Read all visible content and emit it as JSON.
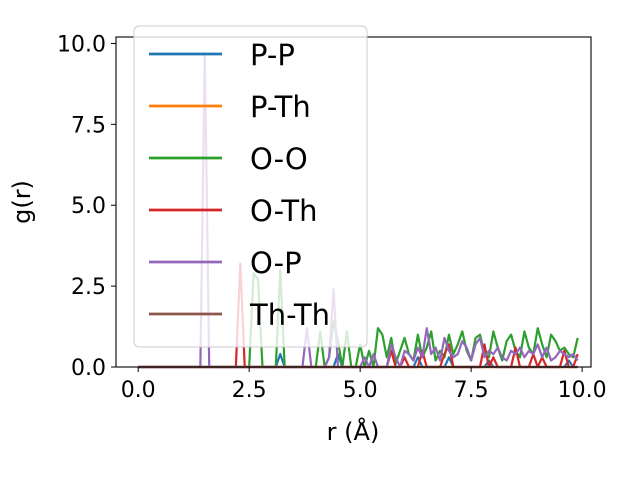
{
  "chart_data": {
    "type": "line",
    "xlabel": "r (Å)",
    "ylabel": "g(r)",
    "xlim": [
      -0.5,
      10.2
    ],
    "ylim": [
      0,
      10.2
    ],
    "xticks": [
      "0.0",
      "2.5",
      "5.0",
      "7.5",
      "10.0"
    ],
    "yticks": [
      "0.0",
      "2.5",
      "5.0",
      "7.5",
      "10.0"
    ],
    "legend_position": "upper-left",
    "grid": false,
    "x": [
      0.0,
      0.1,
      0.2,
      0.3,
      0.4,
      0.5,
      0.6,
      0.7,
      0.8,
      0.9,
      1.0,
      1.1,
      1.2,
      1.3,
      1.4,
      1.5,
      1.6,
      1.7,
      1.8,
      1.9,
      2.0,
      2.1,
      2.2,
      2.3,
      2.4,
      2.5,
      2.6,
      2.7,
      2.8,
      2.9,
      3.0,
      3.1,
      3.2,
      3.3,
      3.4,
      3.5,
      3.6,
      3.7,
      3.8,
      3.9,
      4.0,
      4.1,
      4.2,
      4.3,
      4.4,
      4.5,
      4.6,
      4.7,
      4.8,
      4.9,
      5.0,
      5.1,
      5.2,
      5.3,
      5.4,
      5.5,
      5.6,
      5.7,
      5.8,
      5.9,
      6.0,
      6.1,
      6.2,
      6.3,
      6.4,
      6.5,
      6.6,
      6.7,
      6.8,
      6.9,
      7.0,
      7.1,
      7.2,
      7.3,
      7.4,
      7.5,
      7.6,
      7.7,
      7.8,
      7.9,
      8.0,
      8.1,
      8.2,
      8.3,
      8.4,
      8.5,
      8.6,
      8.7,
      8.8,
      8.9,
      9.0,
      9.1,
      9.2,
      9.3,
      9.4,
      9.5,
      9.6,
      9.7,
      9.8,
      9.9
    ],
    "series": [
      {
        "name": "P-P",
        "color": "#1f77b4",
        "values": [
          0,
          0,
          0,
          0,
          0,
          0,
          0,
          0,
          0,
          0,
          0,
          0,
          0,
          0,
          0,
          0,
          0,
          0,
          0,
          0,
          0,
          0,
          0,
          0,
          0,
          0,
          0,
          0,
          0,
          0,
          0,
          0,
          0.4,
          0,
          0,
          0,
          0,
          0,
          0,
          0,
          0,
          0,
          0,
          0,
          0,
          0.4,
          0,
          0,
          0,
          0,
          0,
          0,
          0,
          0,
          0,
          0,
          0,
          0,
          0,
          0,
          0,
          0,
          0,
          0.3,
          0,
          0,
          0,
          0,
          0,
          0,
          0.3,
          0,
          0,
          0,
          0,
          0,
          0,
          0,
          0,
          0.2,
          0,
          0,
          0,
          0,
          0,
          0,
          0,
          0,
          0,
          0,
          0,
          0,
          0,
          0,
          0,
          0,
          0,
          0.2,
          0,
          0
        ]
      },
      {
        "name": "P-Th",
        "color": "#ff7f0e",
        "values": [
          0,
          0,
          0,
          0,
          0,
          0,
          0,
          0,
          0,
          0,
          0,
          0,
          0,
          0,
          0,
          0,
          0,
          0,
          0,
          0,
          0,
          0,
          0,
          0,
          0,
          0,
          0,
          0,
          0,
          0,
          0,
          0,
          0,
          0,
          0,
          0,
          0,
          0,
          0,
          0,
          0,
          0,
          0,
          0,
          0,
          0,
          0,
          0,
          0,
          0,
          0,
          0,
          0,
          0,
          0,
          0,
          0,
          0,
          0,
          0,
          0,
          0,
          0,
          0,
          0,
          0,
          0,
          0,
          0,
          0,
          0,
          0,
          0,
          0,
          0,
          0,
          0,
          0,
          0,
          0,
          0,
          0,
          0,
          0,
          0,
          0,
          0,
          0,
          0,
          0,
          0,
          0,
          0,
          0,
          0,
          0,
          0,
          0,
          0,
          0
        ]
      },
      {
        "name": "O-O",
        "color": "#2ca02c",
        "values": [
          0,
          0,
          0,
          0,
          0,
          0,
          0,
          0,
          0,
          0,
          0,
          0,
          0,
          0,
          0,
          0,
          0,
          0,
          0,
          0,
          0,
          0,
          0,
          0,
          0,
          0,
          2.9,
          2.7,
          0,
          0,
          0,
          0,
          3.0,
          0,
          0,
          0,
          0,
          0,
          0,
          0,
          0,
          1.1,
          0,
          0.3,
          1.4,
          0.8,
          0,
          1.1,
          0,
          0,
          0.7,
          0,
          0.5,
          0,
          1.2,
          1.0,
          0.3,
          0.9,
          0.1,
          0.5,
          0.9,
          0.4,
          0.2,
          1.0,
          0.3,
          0.6,
          1.1,
          0.2,
          0.5,
          0.3,
          1.0,
          0.4,
          0.7,
          1.1,
          0.5,
          0.2,
          0.9,
          1.0,
          0.4,
          0.3,
          1.1,
          0.6,
          0.2,
          0.8,
          1.0,
          0.5,
          0.3,
          1.1,
          0.6,
          0.4,
          1.2,
          0.7,
          0.3,
          1.0,
          0.8,
          0.5,
          0.6,
          0.4,
          0.3,
          0.9
        ]
      },
      {
        "name": "O-Th",
        "color": "#d62728",
        "values": [
          0,
          0,
          0,
          0,
          0,
          0,
          0,
          0,
          0,
          0,
          0,
          0,
          0,
          0,
          0,
          0,
          0,
          0,
          0,
          0,
          0,
          0,
          0,
          3.2,
          0,
          0,
          0,
          0,
          0,
          0,
          0,
          0,
          0,
          0,
          0,
          0,
          0,
          0,
          0,
          0,
          0,
          0,
          0,
          0,
          0,
          0,
          0,
          0,
          0,
          0,
          0,
          0,
          0,
          0,
          0,
          0,
          0,
          0.5,
          0,
          0,
          0.3,
          0,
          0,
          0,
          0.5,
          0,
          0,
          0,
          0,
          0.4,
          0.7,
          0,
          0,
          0,
          0,
          0,
          0,
          0,
          0.7,
          0,
          0.3,
          0,
          0,
          0,
          0,
          0.6,
          0,
          0,
          0,
          0.4,
          0,
          0.3,
          0,
          0,
          0,
          0,
          0.5,
          0,
          0,
          0.4
        ]
      },
      {
        "name": "O-P",
        "color": "#9467bd",
        "values": [
          0,
          0,
          0,
          0,
          0,
          0,
          0,
          0,
          0,
          0,
          0,
          0,
          0,
          0,
          0,
          9.7,
          0,
          0,
          0,
          0,
          0,
          0,
          0,
          0,
          0,
          0,
          0,
          0,
          0,
          0,
          0,
          0,
          0,
          0,
          0,
          0,
          0,
          0,
          1.2,
          0,
          0,
          0,
          0,
          0.3,
          2.4,
          0,
          0,
          0,
          0,
          0,
          0,
          0.3,
          0,
          0.4,
          0,
          0,
          0,
          0.7,
          0.3,
          0,
          0.5,
          0.4,
          0.2,
          0.6,
          0.3,
          1.2,
          0.4,
          0.6,
          0.2,
          0.9,
          0.5,
          0.3,
          0.4,
          0.8,
          0.6,
          0.2,
          0.7,
          0.9,
          0.3,
          0.5,
          0.4,
          0.6,
          0.3,
          0.2,
          0.5,
          0.4,
          0.6,
          0.3,
          0.5,
          0.4,
          0.7,
          0.3,
          0.6,
          0.2,
          0.3,
          0.5,
          0.4,
          0.3,
          0.4,
          0.2
        ]
      },
      {
        "name": "Th-Th",
        "color": "#8c564b",
        "values": [
          0,
          0,
          0,
          0,
          0,
          0,
          0,
          0,
          0,
          0,
          0,
          0,
          0,
          0,
          0,
          0,
          0,
          0,
          0,
          0,
          0,
          0,
          0,
          0,
          0,
          0,
          0,
          0,
          0,
          0,
          0,
          0,
          0,
          0,
          0,
          0,
          0,
          0,
          0,
          0,
          0,
          0,
          0,
          0,
          0,
          0,
          0,
          0,
          0,
          0,
          0,
          0,
          0,
          0,
          0,
          0,
          0,
          0,
          0,
          0,
          0,
          0,
          0,
          0,
          0,
          0,
          0,
          0,
          0,
          0,
          0,
          0,
          0,
          0,
          0,
          0,
          0,
          0,
          0,
          0,
          0,
          0,
          0,
          0,
          0,
          0,
          0,
          0,
          0,
          0,
          0,
          0,
          0,
          0,
          0,
          0,
          0,
          0,
          0,
          0
        ]
      }
    ]
  }
}
